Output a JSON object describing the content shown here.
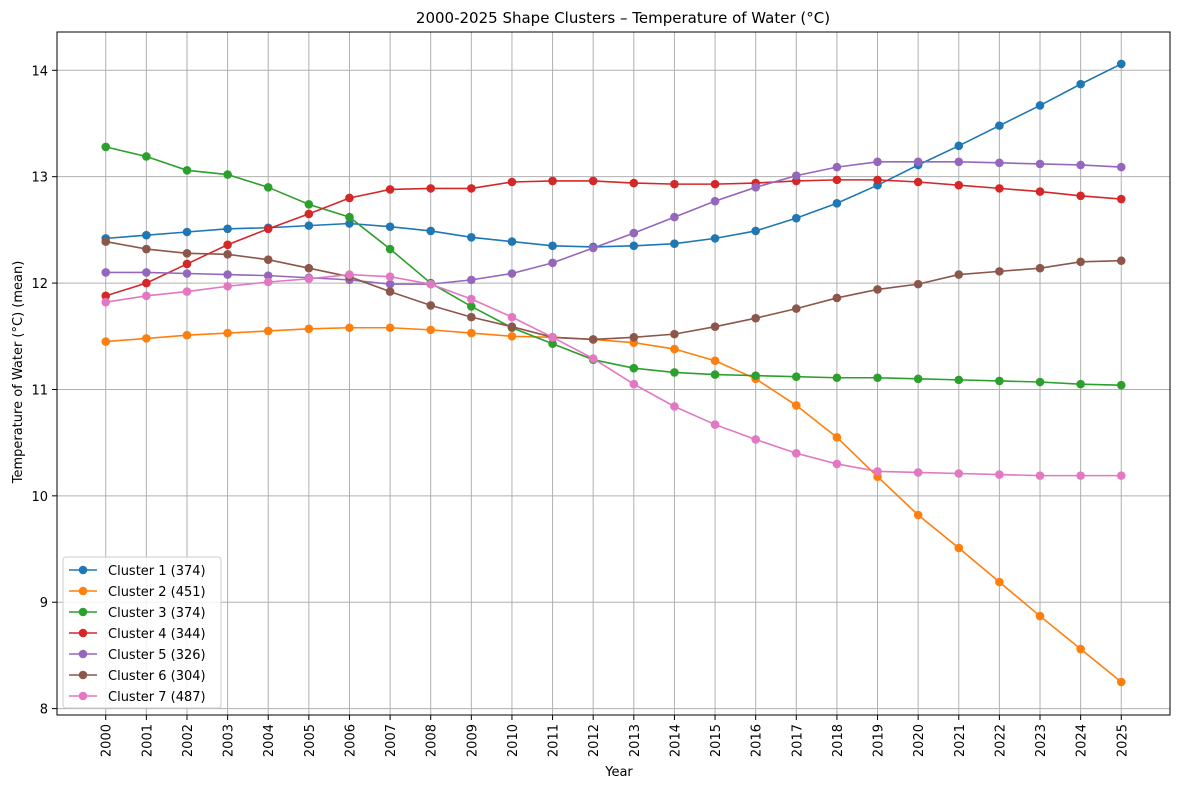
{
  "chart_data": {
    "type": "line",
    "title": "2000-2025 Shape Clusters – Temperature of Water (°C)",
    "xlabel": "Year",
    "ylabel": "Temperature of Water (°C) (mean)",
    "x": [
      "2000",
      "2001",
      "2002",
      "2003",
      "2004",
      "2005",
      "2006",
      "2007",
      "2008",
      "2009",
      "2010",
      "2011",
      "2012",
      "2013",
      "2014",
      "2015",
      "2016",
      "2017",
      "2018",
      "2019",
      "2020",
      "2021",
      "2022",
      "2023",
      "2024",
      "2025"
    ],
    "xlim": [
      1998.8,
      2026.2
    ],
    "ylim": [
      7.94,
      14.36
    ],
    "yticks": [
      8,
      9,
      10,
      11,
      12,
      13,
      14
    ],
    "grid": true,
    "legend_position": "lower-left",
    "series": [
      {
        "name": "Cluster 1 (374)",
        "color": "#1f77b4",
        "values": [
          12.42,
          12.45,
          12.48,
          12.51,
          12.52,
          12.54,
          12.56,
          12.53,
          12.49,
          12.43,
          12.39,
          12.35,
          12.34,
          12.35,
          12.37,
          12.42,
          12.49,
          12.61,
          12.75,
          12.92,
          13.11,
          13.29,
          13.48,
          13.67,
          13.87,
          14.06
        ]
      },
      {
        "name": "Cluster 2 (451)",
        "color": "#ff7f0e",
        "values": [
          11.45,
          11.48,
          11.51,
          11.53,
          11.55,
          11.57,
          11.58,
          11.58,
          11.56,
          11.53,
          11.5,
          11.49,
          11.47,
          11.44,
          11.38,
          11.27,
          11.1,
          10.85,
          10.55,
          10.18,
          9.82,
          9.51,
          9.19,
          8.87,
          8.56,
          8.25
        ]
      },
      {
        "name": "Cluster 3 (374)",
        "color": "#2ca02c",
        "values": [
          13.28,
          13.19,
          13.06,
          13.02,
          12.9,
          12.74,
          12.62,
          12.32,
          12.0,
          11.78,
          11.58,
          11.43,
          11.28,
          11.2,
          11.16,
          11.14,
          11.13,
          11.12,
          11.11,
          11.11,
          11.1,
          11.09,
          11.08,
          11.07,
          11.05,
          11.04
        ]
      },
      {
        "name": "Cluster 4 (344)",
        "color": "#d62728",
        "values": [
          11.88,
          12.0,
          12.18,
          12.36,
          12.51,
          12.65,
          12.8,
          12.88,
          12.89,
          12.89,
          12.95,
          12.96,
          12.96,
          12.94,
          12.93,
          12.93,
          12.94,
          12.96,
          12.97,
          12.97,
          12.95,
          12.92,
          12.89,
          12.86,
          12.82,
          12.79
        ]
      },
      {
        "name": "Cluster 5 (326)",
        "color": "#9467bd",
        "values": [
          12.1,
          12.1,
          12.09,
          12.08,
          12.07,
          12.05,
          12.03,
          11.99,
          11.99,
          12.03,
          12.09,
          12.19,
          12.33,
          12.47,
          12.62,
          12.77,
          12.9,
          13.01,
          13.09,
          13.14,
          13.14,
          13.14,
          13.13,
          13.12,
          13.11,
          13.09
        ]
      },
      {
        "name": "Cluster 6 (304)",
        "color": "#8c564b",
        "values": [
          12.39,
          12.32,
          12.28,
          12.27,
          12.22,
          12.14,
          12.06,
          11.92,
          11.79,
          11.68,
          11.59,
          11.49,
          11.47,
          11.49,
          11.52,
          11.59,
          11.67,
          11.76,
          11.86,
          11.94,
          11.99,
          12.08,
          12.11,
          12.14,
          12.2,
          12.21
        ]
      },
      {
        "name": "Cluster 7 (487)",
        "color": "#e377c2",
        "values": [
          11.82,
          11.88,
          11.92,
          11.97,
          12.01,
          12.04,
          12.08,
          12.06,
          11.99,
          11.85,
          11.68,
          11.49,
          11.29,
          11.05,
          10.84,
          10.67,
          10.53,
          10.4,
          10.3,
          10.23,
          10.22,
          10.21,
          10.2,
          10.19,
          10.19,
          10.19
        ]
      }
    ]
  }
}
